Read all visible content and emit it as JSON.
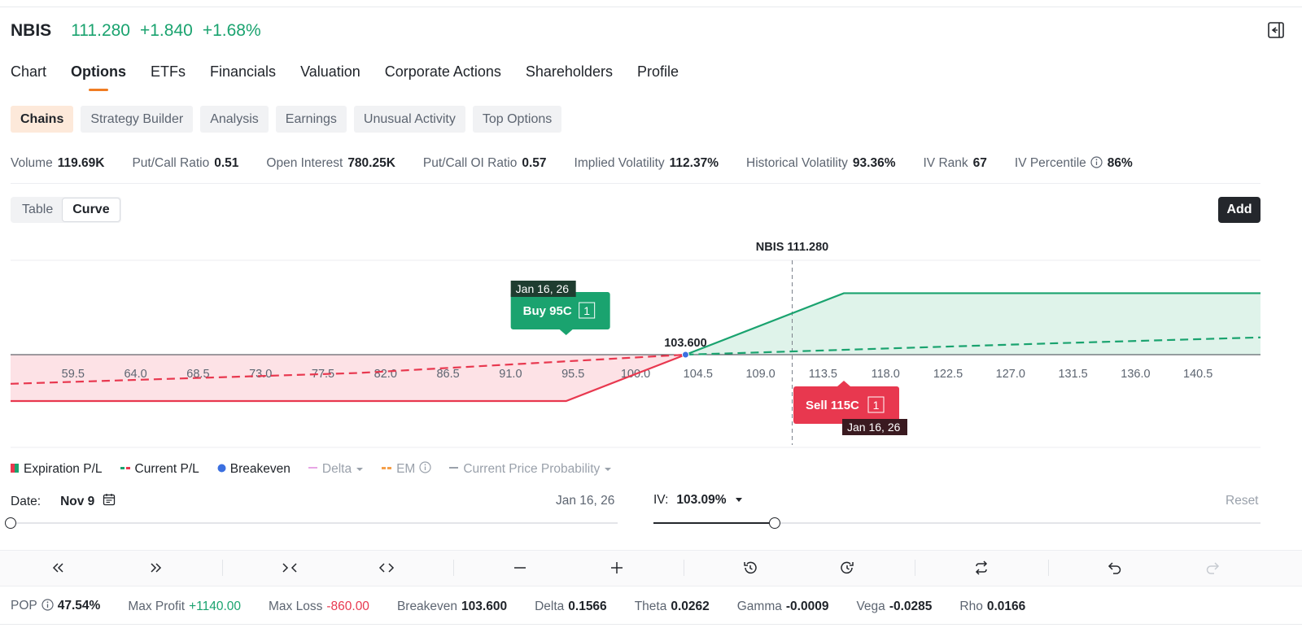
{
  "header": {
    "symbol": "NBIS",
    "price": "111.280",
    "change": "+1.840",
    "change_pct": "+1.68%"
  },
  "tabs": [
    {
      "label": "Chart",
      "active": false
    },
    {
      "label": "Options",
      "active": true
    },
    {
      "label": "ETFs",
      "active": false
    },
    {
      "label": "Financials",
      "active": false
    },
    {
      "label": "Valuation",
      "active": false
    },
    {
      "label": "Corporate Actions",
      "active": false
    },
    {
      "label": "Shareholders",
      "active": false
    },
    {
      "label": "Profile",
      "active": false
    }
  ],
  "subtabs": [
    {
      "label": "Chains",
      "active": true
    },
    {
      "label": "Strategy Builder",
      "active": false
    },
    {
      "label": "Analysis",
      "active": false
    },
    {
      "label": "Earnings",
      "active": false
    },
    {
      "label": "Unusual Activity",
      "active": false
    },
    {
      "label": "Top Options",
      "active": false
    }
  ],
  "stats": [
    {
      "label": "Volume",
      "value": "119.69K"
    },
    {
      "label": "Put/Call Ratio",
      "value": "0.51"
    },
    {
      "label": "Open Interest",
      "value": "780.25K"
    },
    {
      "label": "Put/Call OI Ratio",
      "value": "0.57"
    },
    {
      "label": "Implied Volatility",
      "value": "112.37%"
    },
    {
      "label": "Historical Volatility",
      "value": "93.36%"
    },
    {
      "label": "IV Rank",
      "value": "67"
    },
    {
      "label": "IV Percentile",
      "value": "86%"
    }
  ],
  "view_toggle": {
    "table": "Table",
    "curve": "Curve",
    "selected": "Curve"
  },
  "add_label": "Add",
  "chart_data": {
    "type": "line",
    "underlying_label": "NBIS 111.280",
    "underlying_price": 111.28,
    "x_ticks": [
      "59.5",
      "64.0",
      "68.5",
      "73.0",
      "77.5",
      "82.0",
      "86.5",
      "91.0",
      "95.5",
      "100.0",
      "104.5",
      "109.0",
      "113.5",
      "118.0",
      "122.5",
      "127.0",
      "131.5",
      "136.0",
      "140.5"
    ],
    "xlim": [
      55,
      145
    ],
    "breakeven": {
      "x": 103.6,
      "label": "103.600"
    },
    "series": [
      {
        "name": "Expiration P/L",
        "style": "solid",
        "points": [
          [
            55,
            -860
          ],
          [
            95,
            -860
          ],
          [
            115,
            1140
          ],
          [
            145,
            1140
          ]
        ]
      },
      {
        "name": "Current P/L",
        "style": "dashed",
        "points": [
          [
            55,
            -540
          ],
          [
            80,
            -340
          ],
          [
            103.6,
            0
          ],
          [
            111.28,
            60
          ],
          [
            130,
            210
          ],
          [
            145,
            320
          ]
        ]
      }
    ],
    "legs": [
      {
        "action": "Buy",
        "strike": "95C",
        "label": "Buy 95C",
        "qty": "1",
        "expiry": "Jan 16, 26",
        "side": "long",
        "strike_value": 95
      },
      {
        "action": "Sell",
        "strike": "115C",
        "label": "Sell 115C",
        "qty": "1",
        "expiry": "Jan 16, 26",
        "side": "short",
        "strike_value": 115
      }
    ],
    "colors": {
      "profit": "#1aa36f",
      "loss": "#e8384f",
      "profit_fill": "#dff3ea",
      "loss_fill": "#fde2e6",
      "breakeven": "#3b6fe0"
    }
  },
  "legend": [
    {
      "label": "Expiration P/L",
      "active": true
    },
    {
      "label": "Current P/L",
      "active": true
    },
    {
      "label": "Breakeven",
      "active": true
    },
    {
      "label": "Delta",
      "active": false
    },
    {
      "label": "EM",
      "active": false
    },
    {
      "label": "Current Price Probability",
      "active": false
    }
  ],
  "date_control": {
    "label": "Date:",
    "value": "Nov 9",
    "end": "Jan 16, 26",
    "position": 0.0
  },
  "iv_control": {
    "label": "IV:",
    "value": "103.09%",
    "position": 0.2
  },
  "reset_label": "Reset",
  "toolbar_icons": [
    "double-left-icon",
    "double-right-icon",
    "collapse-arrows-icon",
    "expand-arrows-icon",
    "minus-icon",
    "plus-icon",
    "history-back-icon",
    "history-forward-icon",
    "swap-icon",
    "undo-icon",
    "redo-icon"
  ],
  "bottom_stats": [
    {
      "label": "POP",
      "value": "47.54%",
      "tone": "normal",
      "info": true
    },
    {
      "label": "Max Profit",
      "value": "+1140.00",
      "tone": "pos",
      "info": false
    },
    {
      "label": "Max Loss",
      "value": "-860.00",
      "tone": "neg",
      "info": false
    },
    {
      "label": "Breakeven",
      "value": "103.600",
      "tone": "normal",
      "info": false
    },
    {
      "label": "Delta",
      "value": "0.1566",
      "tone": "normal",
      "info": false
    },
    {
      "label": "Theta",
      "value": "0.0262",
      "tone": "normal",
      "info": false
    },
    {
      "label": "Gamma",
      "value": "-0.0009",
      "tone": "normal",
      "info": false
    },
    {
      "label": "Vega",
      "value": "-0.0285",
      "tone": "normal",
      "info": false
    },
    {
      "label": "Rho",
      "value": "0.0166",
      "tone": "normal",
      "info": false
    }
  ]
}
